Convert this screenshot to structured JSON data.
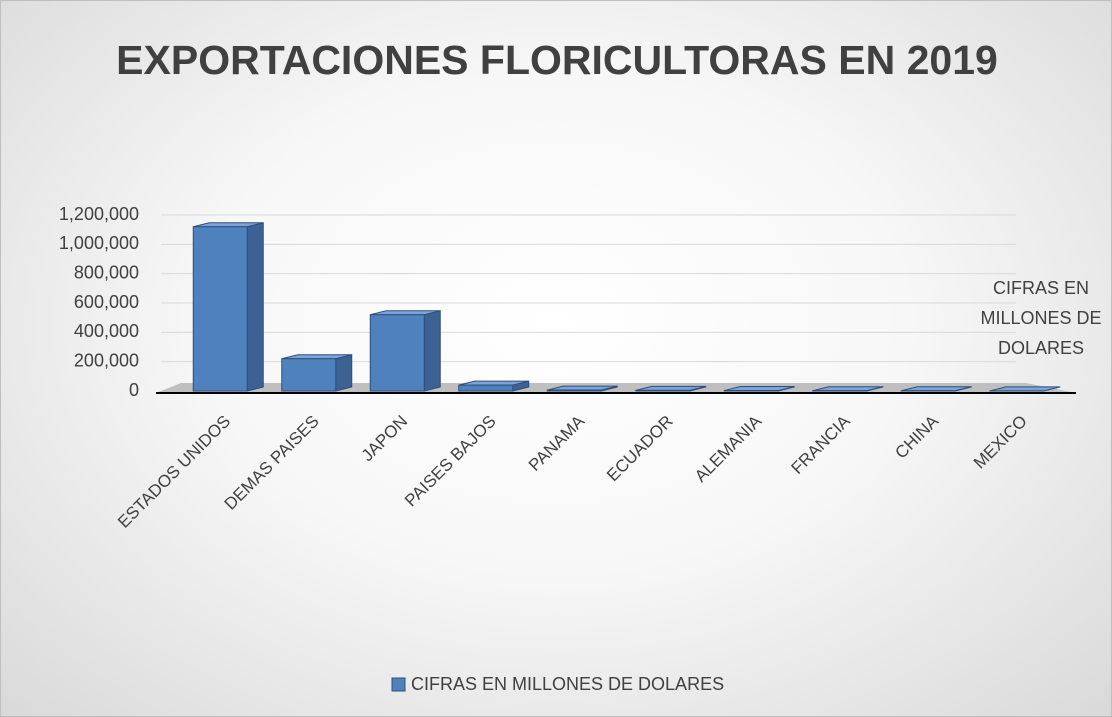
{
  "chart_data": {
    "type": "bar3d",
    "title": "EXPORTACIONES FLORICULTORAS EN 2019",
    "categories": [
      "ESTADOS UNIDOS",
      "DEMAS PAISES",
      "JAPON",
      "PAISES BAJOS",
      "PANAMA",
      "ECUADOR",
      "ALEMANIA",
      "FRANCIA",
      "CHINA",
      "MEXICO"
    ],
    "series": [
      {
        "name": "CIFRAS EN MILLONES DE DOLARES",
        "color": "#4f81bd",
        "values": [
          1120000,
          220000,
          520000,
          40000,
          6000,
          4000,
          3000,
          2000,
          1500,
          500
        ]
      }
    ],
    "ylim": [
      0,
      1200000
    ],
    "yticks": [
      0,
      {
        "value": 200000,
        "label": "200,000"
      },
      {
        "value": 400000,
        "label": "400,000"
      },
      {
        "value": 600000,
        "label": "600,000"
      },
      {
        "value": 800000,
        "label": "800,000"
      },
      {
        "value": 1000000,
        "label": "1,000,000"
      },
      {
        "value": 1200000,
        "label": "1,200,000"
      }
    ],
    "grid": true,
    "legend": "bottom"
  }
}
